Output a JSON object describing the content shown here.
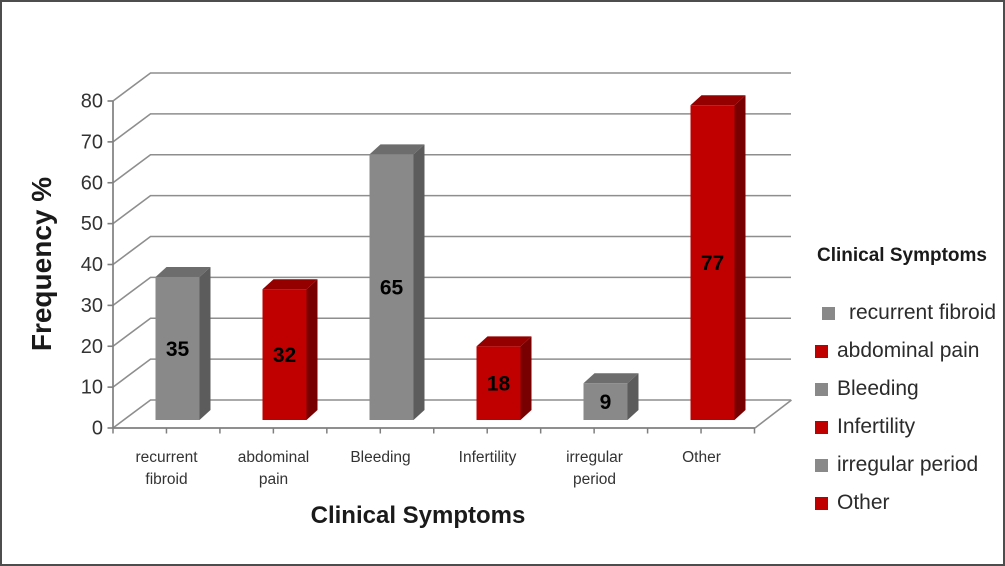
{
  "chart_data": {
    "type": "bar",
    "variant": "3d-column",
    "title": "",
    "xlabel": "Clinical Symptoms",
    "ylabel": "Frequency %",
    "categories": [
      "recurrent fibroid",
      "abdominal pain",
      "Bleeding",
      "Infertility",
      "irregular period",
      "Other"
    ],
    "category_label_lines": [
      [
        "recurrent",
        "fibroid"
      ],
      [
        "abdominal",
        "pain"
      ],
      [
        "Bleeding"
      ],
      [
        "Infertility"
      ],
      [
        "irregular",
        "period"
      ],
      [
        "Other"
      ]
    ],
    "values": [
      35,
      32,
      65,
      18,
      9,
      77
    ],
    "data_labels": [
      "35",
      "32",
      "65",
      "18",
      "9",
      "77"
    ],
    "series_color_keys": [
      "gray",
      "red",
      "gray",
      "red",
      "gray",
      "red"
    ],
    "ylim": [
      0,
      80
    ],
    "ytick_labels": [
      "0",
      "10",
      "20",
      "30",
      "40",
      "50",
      "60",
      "70",
      "80"
    ],
    "grid": true,
    "legend": {
      "title": "Clinical Symptoms",
      "position": "right",
      "entries": [
        {
          "label": "recurrent fibroid",
          "color_key": "gray",
          "indent": true
        },
        {
          "label": "abdominal pain",
          "color_key": "red"
        },
        {
          "label": "Bleeding",
          "color_key": "gray"
        },
        {
          "label": "Infertility",
          "color_key": "red"
        },
        {
          "label": "irregular period",
          "color_key": "gray"
        },
        {
          "label": "Other",
          "color_key": "red"
        }
      ]
    },
    "colors": {
      "gray": {
        "front": "#898989",
        "top": "#6D6D6D",
        "side": "#5C5C5C"
      },
      "red": {
        "front": "#C00000",
        "top": "#940000",
        "side": "#780000"
      },
      "gridline": "#8E8E8E",
      "axis": "#7F7F7F",
      "tick_text": "#333333",
      "title_text": "#1A1A1A",
      "data_label_text": "#000000",
      "border": "#4D4D4D",
      "background": "#FFFFFF"
    }
  }
}
